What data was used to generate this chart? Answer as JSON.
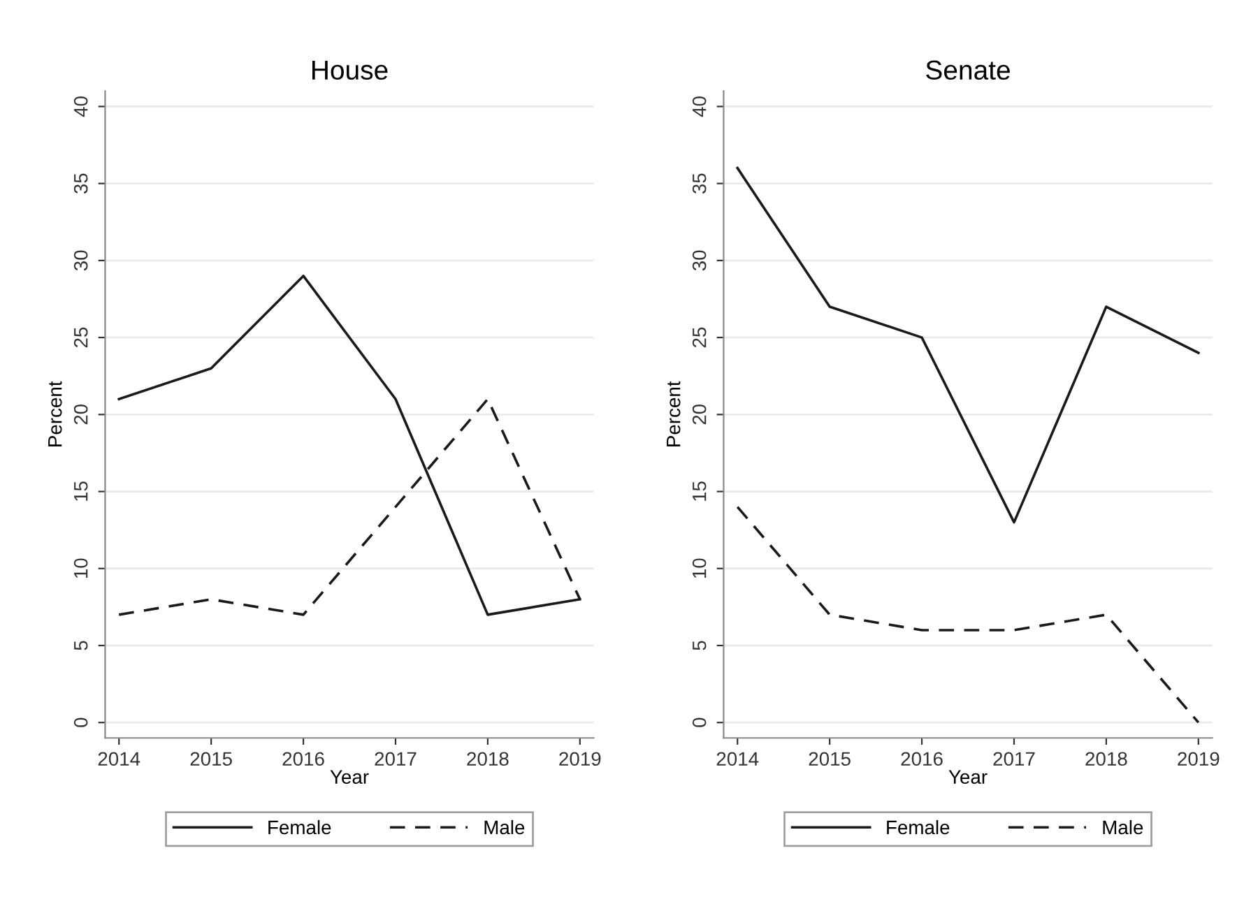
{
  "chart_data": [
    {
      "type": "line",
      "title": "House",
      "xlabel": "Year",
      "ylabel": "Percent",
      "x": [
        2014,
        2015,
        2016,
        2017,
        2018,
        2019
      ],
      "series": [
        {
          "name": "Female",
          "color": "#1a1a1a",
          "line_style": "solid",
          "values": [
            21,
            23,
            29,
            21,
            7,
            8
          ]
        },
        {
          "name": "Male",
          "color": "#1a1a1a",
          "line_style": "dashed",
          "values": [
            7,
            8,
            7,
            14,
            21,
            8
          ]
        }
      ],
      "xlim": [
        2013.85,
        2019.15
      ],
      "ylim": [
        -1,
        41
      ],
      "xticks": [
        2014,
        2015,
        2016,
        2017,
        2018,
        2019
      ],
      "yticks": [
        0,
        5,
        10,
        15,
        20,
        25,
        30,
        35,
        40
      ],
      "grid": "y",
      "legend": "bottom"
    },
    {
      "type": "line",
      "title": "Senate",
      "xlabel": "Year",
      "ylabel": "Percent",
      "x": [
        2014,
        2015,
        2016,
        2017,
        2018,
        2019
      ],
      "series": [
        {
          "name": "Female",
          "color": "#1a1a1a",
          "line_style": "solid",
          "values": [
            36,
            27,
            25,
            13,
            27,
            24
          ]
        },
        {
          "name": "Male",
          "color": "#1a1a1a",
          "line_style": "dashed",
          "values": [
            14,
            7,
            6,
            6,
            7,
            0
          ]
        }
      ],
      "xlim": [
        2013.85,
        2019.15
      ],
      "ylim": [
        -1,
        41
      ],
      "xticks": [
        2014,
        2015,
        2016,
        2017,
        2018,
        2019
      ],
      "yticks": [
        0,
        5,
        10,
        15,
        20,
        25,
        30,
        35,
        40
      ],
      "grid": "y",
      "legend": "bottom"
    }
  ]
}
